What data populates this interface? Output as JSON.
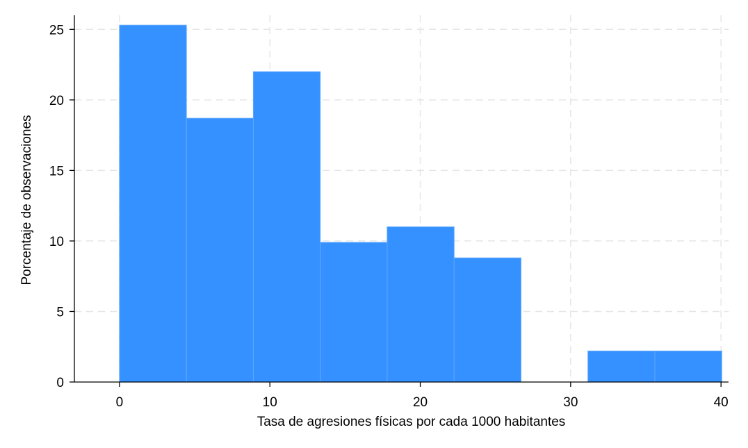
{
  "chart_data": {
    "type": "bar",
    "subtype": "histogram",
    "title": "",
    "xlabel": "Tasa de agresiones físicas por cada 1000 habitantes",
    "ylabel": "Porcentaje de observaciones",
    "xlim": [
      -3,
      40.5
    ],
    "ylim": [
      0,
      26
    ],
    "xticks": [
      0,
      10,
      20,
      30,
      40
    ],
    "yticks": [
      0,
      5,
      10,
      15,
      20,
      25
    ],
    "grid": true,
    "legend": "none",
    "bar_color": "#3591ff",
    "bar_edge_color": "#5fa8ff",
    "grid_color": "#e6e6e6",
    "bins": [
      {
        "x0": 0.0,
        "x1": 4.45,
        "value": 25.3
      },
      {
        "x0": 4.45,
        "x1": 8.9,
        "value": 18.7
      },
      {
        "x0": 8.9,
        "x1": 13.35,
        "value": 22.0
      },
      {
        "x0": 13.35,
        "x1": 17.8,
        "value": 9.9
      },
      {
        "x0": 17.8,
        "x1": 22.25,
        "value": 11.0
      },
      {
        "x0": 22.25,
        "x1": 26.7,
        "value": 8.8
      },
      {
        "x0": 31.15,
        "x1": 35.6,
        "value": 2.2
      },
      {
        "x0": 35.6,
        "x1": 40.05,
        "value": 2.2
      }
    ]
  }
}
